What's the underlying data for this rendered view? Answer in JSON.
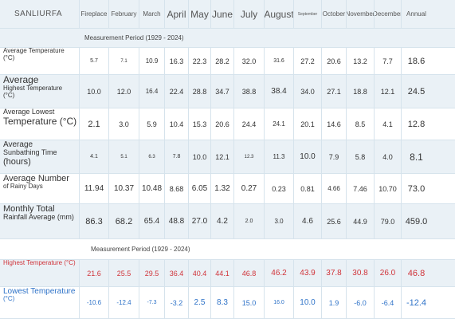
{
  "city": "SANLIURFA",
  "columns": [
    {
      "label": "Fireplace",
      "size": "small"
    },
    {
      "label": "February",
      "size": "small"
    },
    {
      "label": "March",
      "size": "small"
    },
    {
      "label": "April",
      "size": "big"
    },
    {
      "label": "May",
      "size": "big"
    },
    {
      "label": "June",
      "size": "big"
    },
    {
      "label": "July",
      "size": "big"
    },
    {
      "label": "August",
      "size": "big"
    },
    {
      "label": "September",
      "size": "tiny"
    },
    {
      "label": "October",
      "size": "small"
    },
    {
      "label": "November",
      "size": "small"
    },
    {
      "label": "December",
      "size": "small"
    },
    {
      "label": "Annual",
      "size": "small"
    }
  ],
  "period_1": "Measurement Period (1929 - 2024)",
  "period_2": "Measurement Period (1929 - 2024)",
  "rows": [
    {
      "id": "avg-temp",
      "label_lines": [
        "Average Temperature",
        "(°C)"
      ],
      "values": [
        "5.7",
        "7.1",
        "10.9",
        "16.3",
        "22.3",
        "28.2",
        "32.0",
        "31.6",
        "27.2",
        "20.6",
        "13.2",
        "7.7",
        "18.6"
      ]
    },
    {
      "id": "avg-high",
      "label_lines": [
        "Average",
        "Highest Temperature",
        "(°C)"
      ],
      "values": [
        "10.0",
        "12.0",
        "16.4",
        "22.4",
        "28.8",
        "34.7",
        "38.8",
        "38.4",
        "34.0",
        "27.1",
        "18.8",
        "12.1",
        "24.5"
      ]
    },
    {
      "id": "avg-low",
      "label_lines": [
        "Average Lowest",
        "Temperature (°C)"
      ],
      "values": [
        "2.1",
        "3.0",
        "5.9",
        "10.4",
        "15.3",
        "20.6",
        "24.4",
        "24.1",
        "20.1",
        "14.6",
        "8.5",
        "4.1",
        "12.8"
      ]
    },
    {
      "id": "sun",
      "label_lines": [
        "Average",
        "Sunbathing Time",
        "(hours)"
      ],
      "values": [
        "4.1",
        "5.1",
        "6.3",
        "7.8",
        "10.0",
        "12.1",
        "12.3",
        "11.3",
        "10.0",
        "7.9",
        "5.8",
        "4.0",
        "8.1"
      ]
    },
    {
      "id": "rainy-days",
      "label_lines": [
        "Average Number",
        "of Rainy Days"
      ],
      "values": [
        "11.94",
        "10.37",
        "10.48",
        "8.68",
        "6.05",
        "1.32",
        "0.27",
        "0.23",
        "0.81",
        "4.66",
        "7.46",
        "10.70",
        "73.0"
      ]
    },
    {
      "id": "rainfall",
      "label_lines": [
        "Monthly Total",
        "Rainfall Average (mm)"
      ],
      "values": [
        "86.3",
        "68.2",
        "65.4",
        "48.8",
        "27.0",
        "4.2",
        "2.0",
        "3.0",
        "4.6",
        "25.6",
        "44.9",
        "79.0",
        "459.0"
      ]
    }
  ],
  "extremes": [
    {
      "id": "highest",
      "label_lines": [
        "Highest Temperature (°C)"
      ],
      "color": "#d0343a",
      "values": [
        "21.6",
        "25.5",
        "29.5",
        "36.4",
        "40.4",
        "44.1",
        "46.8",
        "46.2",
        "43.9",
        "37.8",
        "30.8",
        "26.0",
        "46.8"
      ]
    },
    {
      "id": "lowest",
      "label_lines": [
        "Lowest Temperature",
        "(°C)"
      ],
      "color": "#2f73c8",
      "values": [
        "-10.6",
        "-12.4",
        "-7.3",
        "-3.2",
        "2.5",
        "8.3",
        "15.0",
        "16.0",
        "10.0",
        "1.9",
        "-6.0",
        "-6.4",
        "-12.4"
      ]
    }
  ]
}
